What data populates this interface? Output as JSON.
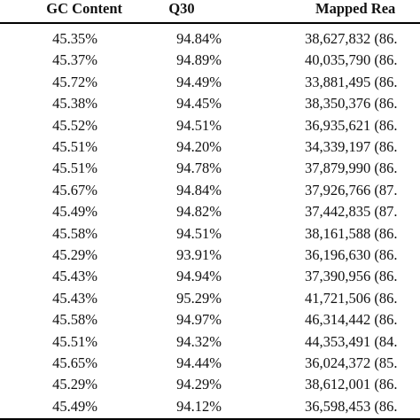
{
  "table": {
    "headers": {
      "gc_content": "GC Content",
      "q30": "Q30",
      "mapped_reads": "Mapped Rea"
    },
    "rows": [
      {
        "gc": "45.35%",
        "q30": "94.84%",
        "mapped": "38,627,832 (86."
      },
      {
        "gc": "45.37%",
        "q30": "94.89%",
        "mapped": "40,035,790 (86."
      },
      {
        "gc": "45.72%",
        "q30": "94.49%",
        "mapped": "33,881,495 (86."
      },
      {
        "gc": "45.38%",
        "q30": "94.45%",
        "mapped": "38,350,376 (86."
      },
      {
        "gc": "45.52%",
        "q30": "94.51%",
        "mapped": "36,935,621 (86."
      },
      {
        "gc": "45.51%",
        "q30": "94.20%",
        "mapped": "34,339,197 (86."
      },
      {
        "gc": "45.51%",
        "q30": "94.78%",
        "mapped": "37,879,990 (86."
      },
      {
        "gc": "45.67%",
        "q30": "94.84%",
        "mapped": "37,926,766 (87."
      },
      {
        "gc": "45.49%",
        "q30": "94.82%",
        "mapped": "37,442,835 (87."
      },
      {
        "gc": "45.58%",
        "q30": "94.51%",
        "mapped": "38,161,588 (86."
      },
      {
        "gc": "45.29%",
        "q30": "93.91%",
        "mapped": "36,196,630 (86."
      },
      {
        "gc": "45.43%",
        "q30": "94.94%",
        "mapped": "37,390,956 (86."
      },
      {
        "gc": "45.43%",
        "q30": "95.29%",
        "mapped": "41,721,506 (86."
      },
      {
        "gc": "45.58%",
        "q30": "94.97%",
        "mapped": "46,314,442 (86."
      },
      {
        "gc": "45.51%",
        "q30": "94.32%",
        "mapped": "44,353,491 (84."
      },
      {
        "gc": "45.65%",
        "q30": "94.44%",
        "mapped": "36,024,372 (85."
      },
      {
        "gc": "45.29%",
        "q30": "94.29%",
        "mapped": "38,612,001 (86."
      },
      {
        "gc": "45.49%",
        "q30": "94.12%",
        "mapped": "36,598,453 (86."
      }
    ]
  }
}
